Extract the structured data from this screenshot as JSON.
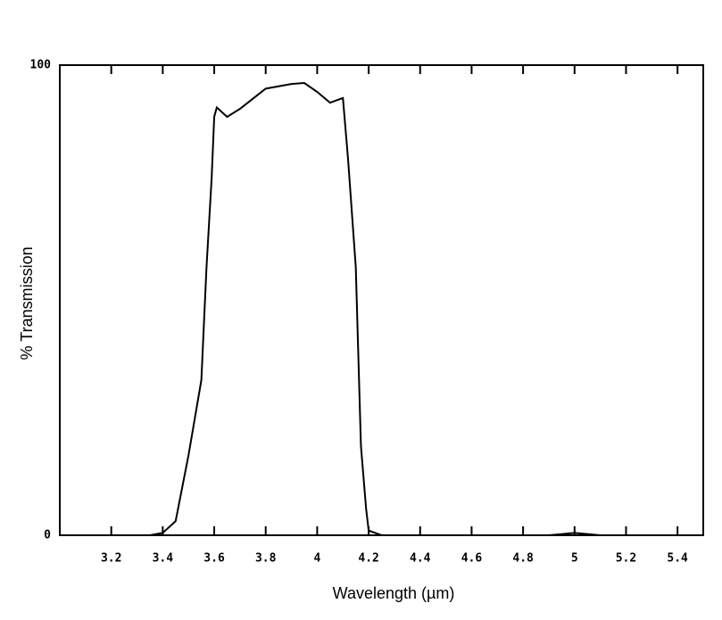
{
  "chart_data": {
    "type": "line",
    "xlabel": "Wavelength (µm)",
    "ylabel": "% Transmission",
    "x": [
      3.0,
      3.2,
      3.35,
      3.4,
      3.45,
      3.5,
      3.55,
      3.57,
      3.59,
      3.6,
      3.61,
      3.65,
      3.7,
      3.8,
      3.9,
      3.95,
      4.0,
      4.05,
      4.08,
      4.1,
      4.12,
      4.15,
      4.17,
      4.19,
      4.2,
      4.25,
      4.5,
      4.9,
      5.0,
      5.1,
      5.5
    ],
    "series": [
      {
        "color": "#000000",
        "values": [
          0,
          0,
          0,
          0.5,
          3,
          17,
          33,
          57,
          76,
          89,
          91,
          89,
          90.7,
          95,
          96,
          96.2,
          94.3,
          92,
          92.6,
          93,
          80,
          57,
          19,
          5.7,
          1,
          0,
          0,
          0,
          0.5,
          0,
          0
        ]
      }
    ],
    "xlim": [
      3.0,
      5.5
    ],
    "xticks": [
      3.2,
      3.4,
      3.6,
      3.8,
      4,
      4.2,
      4.4,
      4.6,
      4.8,
      5,
      5.2,
      5.4
    ],
    "ylim": [
      0,
      100
    ],
    "yticks": [
      0,
      100
    ]
  }
}
